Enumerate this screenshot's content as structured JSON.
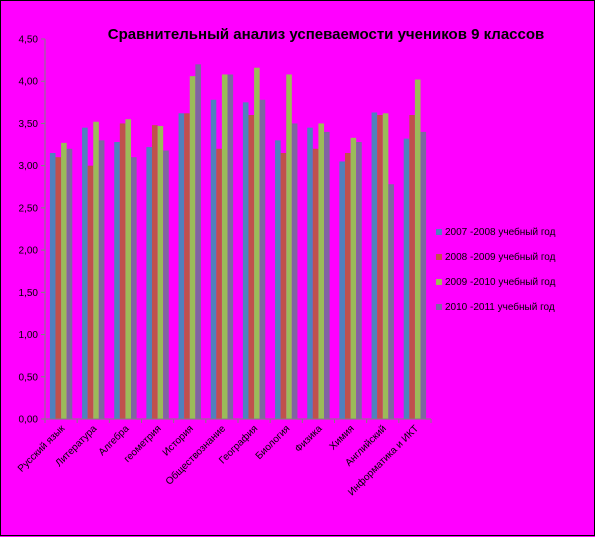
{
  "chart_data": {
    "type": "bar",
    "title": "Сравнительный анализ успеваемости учеников 9 классов",
    "categories": [
      "Русский язык",
      "Литература",
      "Алгебра",
      "геометрия",
      "История",
      "Обществознание",
      "География",
      "Биология",
      "Физика",
      "Химия",
      "Английский",
      "Информатика и ИКТ"
    ],
    "series": [
      {
        "name": "2007 -2008 учебный год",
        "color": "#4f81bd",
        "values": [
          3.15,
          3.45,
          3.28,
          3.22,
          3.62,
          3.78,
          3.75,
          3.3,
          3.45,
          3.05,
          3.63,
          3.32
        ]
      },
      {
        "name": "2008 -2009 учебный год",
        "color": "#c0504d",
        "values": [
          3.1,
          3.0,
          3.5,
          3.48,
          3.62,
          3.2,
          3.6,
          3.15,
          3.2,
          3.15,
          3.6,
          3.6
        ]
      },
      {
        "name": "2009 -2010 учебный год",
        "color": "#9bbb59",
        "values": [
          3.27,
          3.52,
          3.55,
          3.47,
          4.06,
          4.08,
          4.16,
          4.08,
          3.5,
          3.33,
          3.62,
          4.02
        ]
      },
      {
        "name": "2010 -2011 учебный год",
        "color": "#8064a2",
        "values": [
          3.2,
          3.3,
          3.1,
          3.18,
          4.2,
          4.08,
          3.78,
          3.5,
          3.4,
          3.28,
          2.78,
          3.4
        ]
      }
    ],
    "y_ticks": [
      "0,00",
      "0,50",
      "1,00",
      "1,50",
      "2,00",
      "2,50",
      "3,00",
      "3,50",
      "4,00",
      "4,50"
    ],
    "ylim": [
      0,
      4.5
    ],
    "grid": false,
    "legend_position": "right"
  }
}
